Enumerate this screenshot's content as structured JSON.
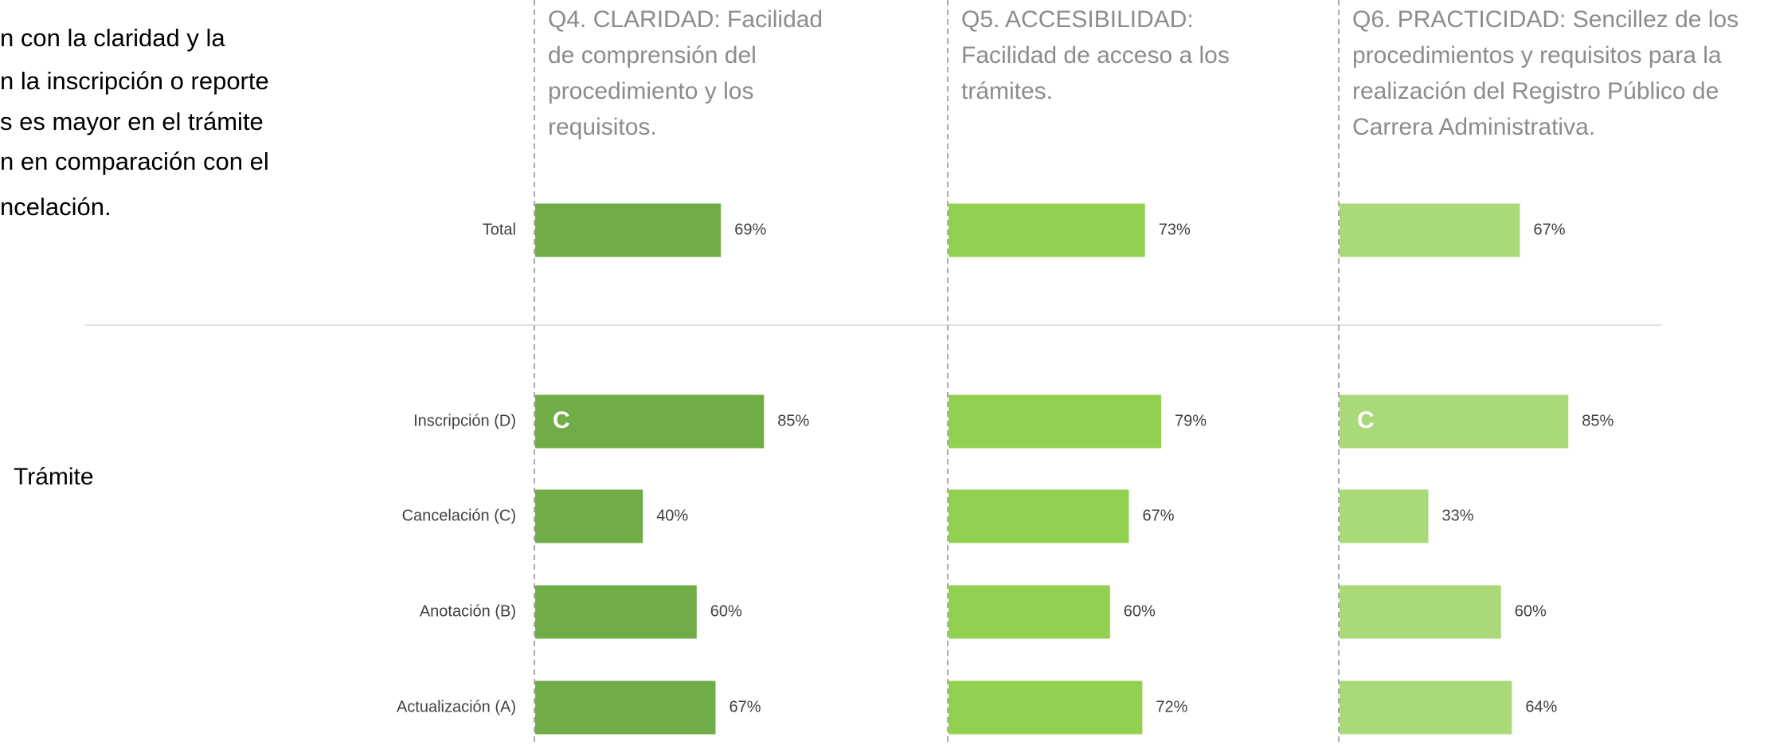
{
  "intro_lines": [
    "n con la claridad y la",
    "n la inscripción o reporte",
    "s es mayor en el trámite",
    "n en comparación con el",
    "ncelación."
  ],
  "group_label": "Trámite",
  "categories": [
    "Total",
    "Inscripción (D)",
    "Cancelación (C)",
    "Anotación (B)",
    "Actualización (A)"
  ],
  "chart_data": [
    {
      "type": "bar",
      "orientation": "horizontal",
      "title": "Q4. CLARIDAD: Facilidad de comprensión del procedimiento y los requisitos.",
      "values": [
        69,
        85,
        40,
        60,
        67
      ],
      "value_labels": [
        "69%",
        "85%",
        "40%",
        "60%",
        "67%"
      ],
      "value_notes": [
        null,
        "C",
        null,
        null,
        null
      ],
      "color": "#70ad47",
      "xlim": [
        0,
        100
      ]
    },
    {
      "type": "bar",
      "orientation": "horizontal",
      "title": "Q5. ACCESIBILIDAD: Facilidad de acceso a los trámites.",
      "values": [
        73,
        79,
        67,
        60,
        72
      ],
      "value_labels": [
        "73%",
        "79%",
        "67%",
        "60%",
        "72%"
      ],
      "value_notes": [
        null,
        null,
        null,
        null,
        null
      ],
      "color": "#92d050",
      "xlim": [
        0,
        100
      ]
    },
    {
      "type": "bar",
      "orientation": "horizontal",
      "title": "Q6. PRACTICIDAD: Sencillez de los procedimientos y requisitos para la realización del Registro Público de Carrera Administrativa.",
      "values": [
        67,
        85,
        33,
        60,
        64
      ],
      "value_labels": [
        "67%",
        "85%",
        "33%",
        "60%",
        "64%"
      ],
      "value_notes": [
        null,
        "C",
        null,
        null,
        null
      ],
      "color": "#a9d978",
      "xlim": [
        0,
        100
      ]
    }
  ]
}
